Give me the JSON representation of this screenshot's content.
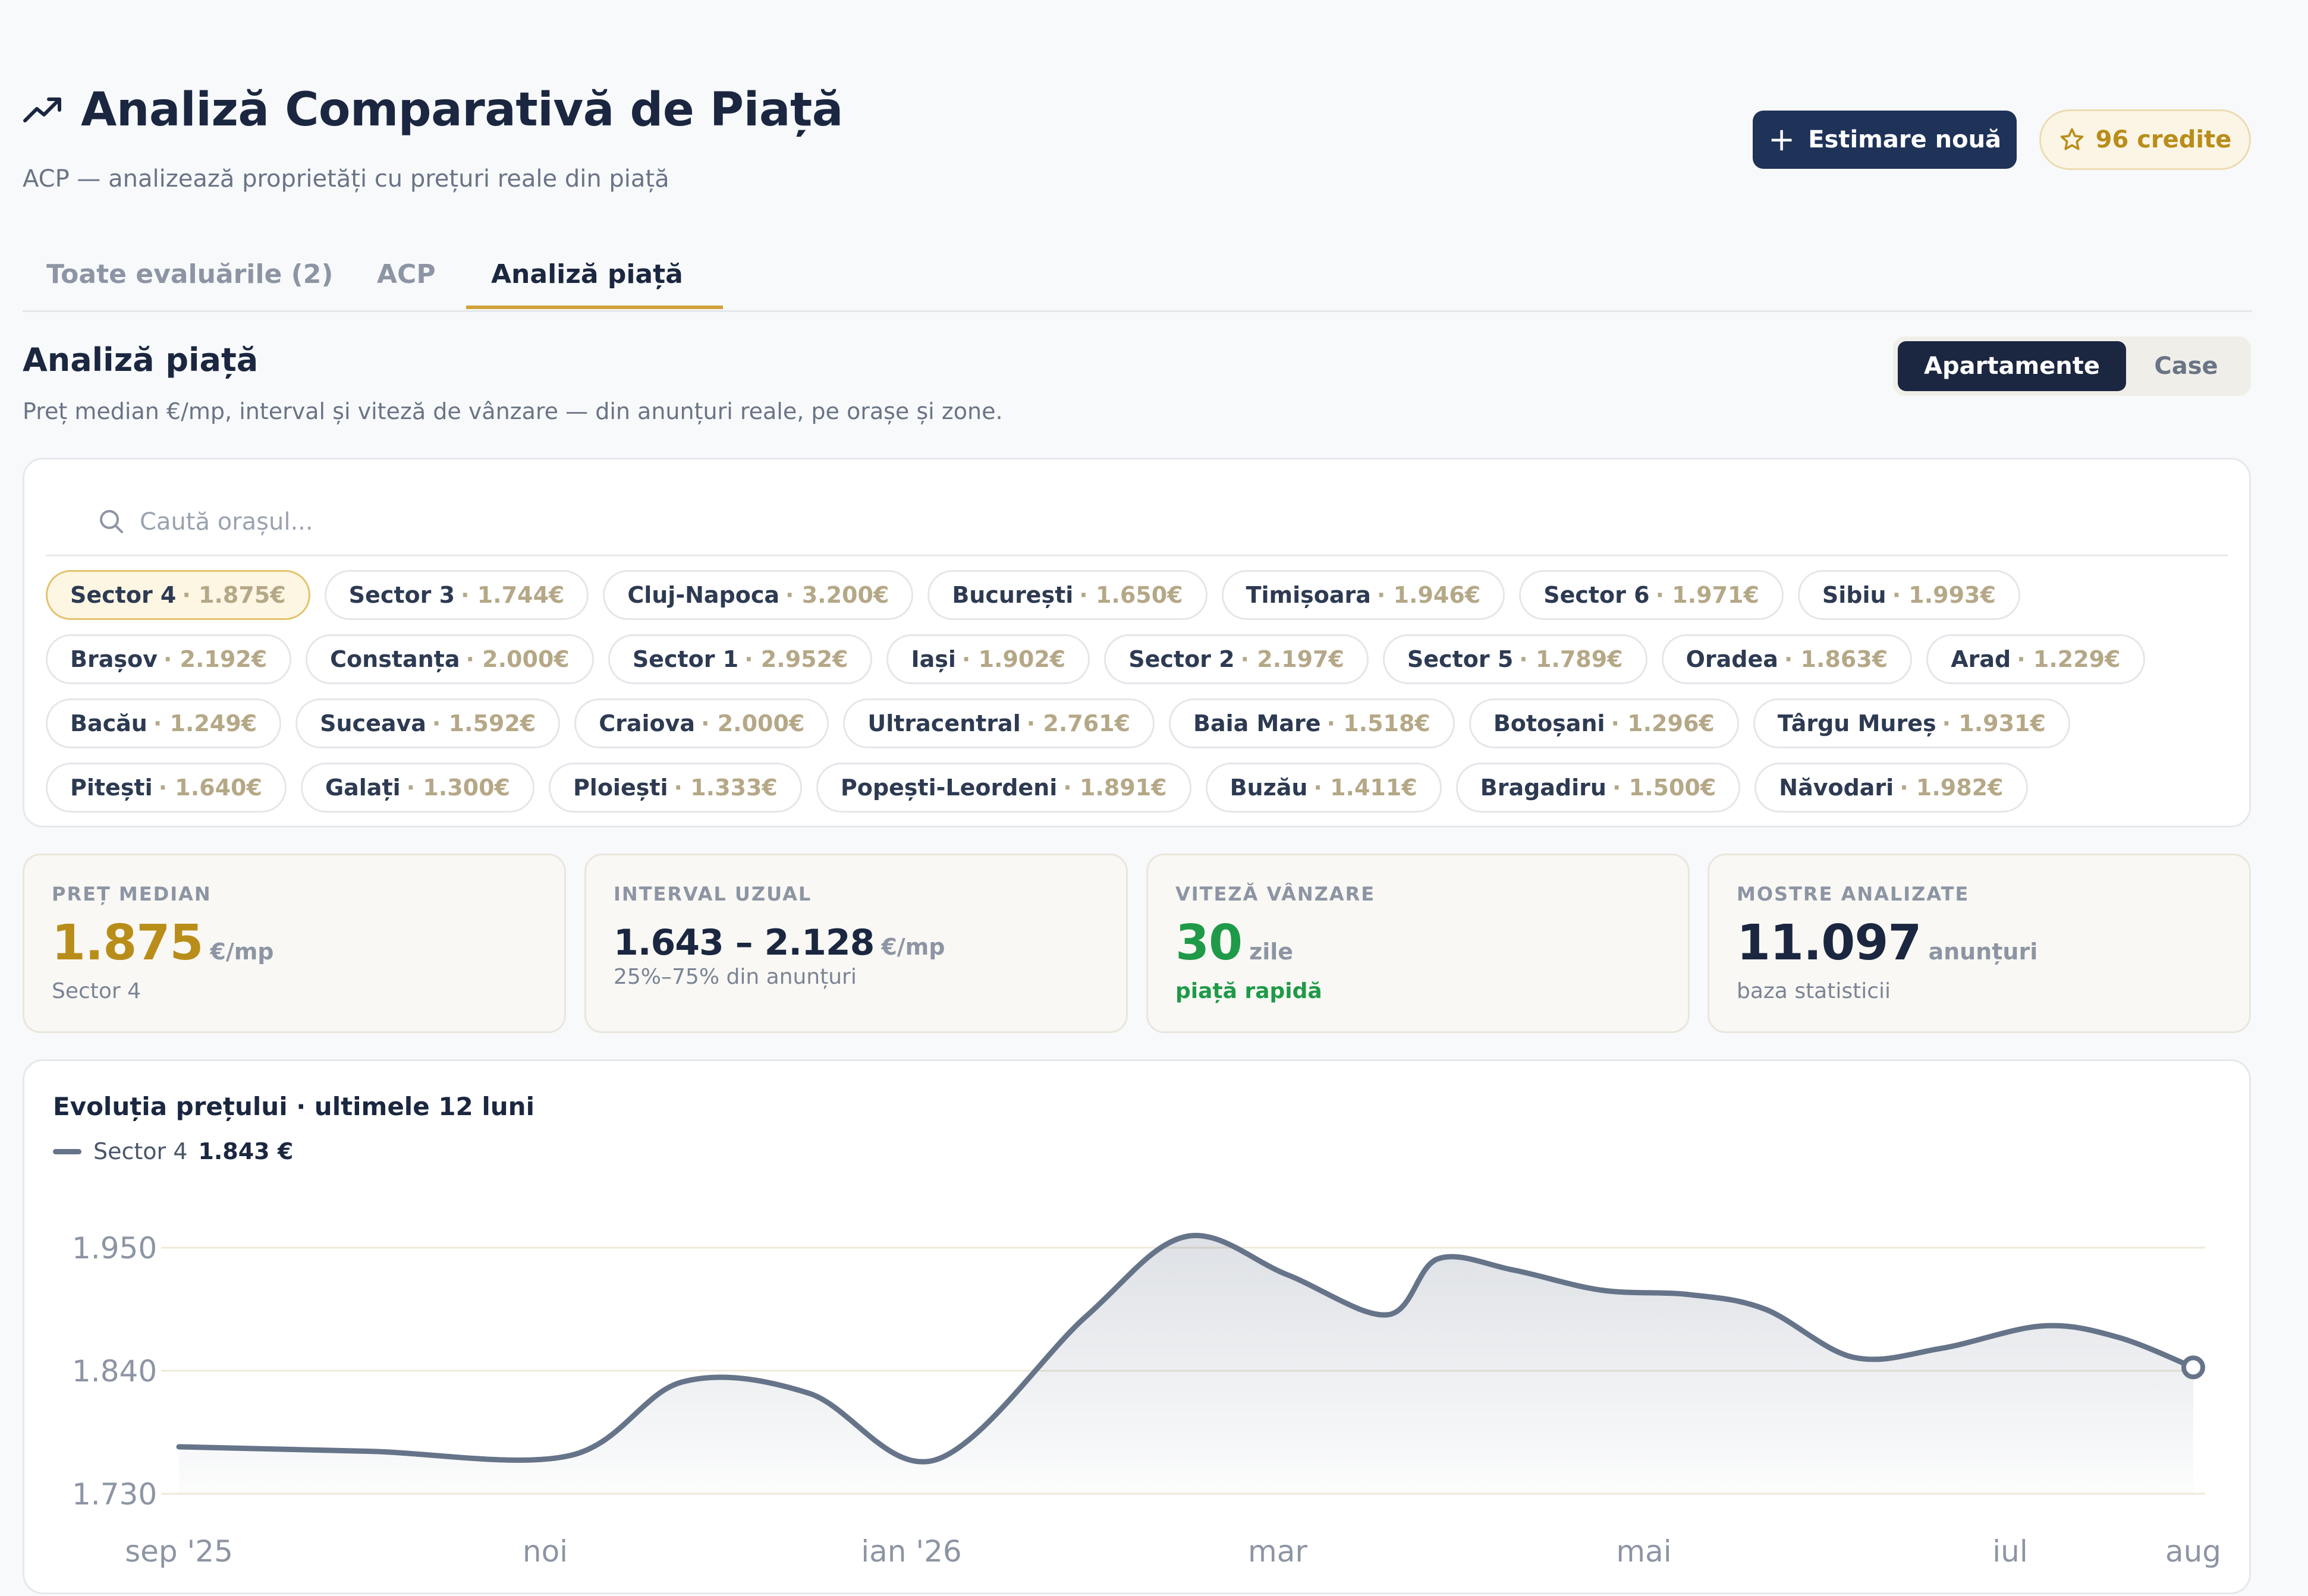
{
  "header": {
    "title": "Analiză Comparativă de Piață",
    "subtitle": "ACP — analizează proprietăți cu prețuri reale din piață",
    "title_icon": "trending-up-icon",
    "new_estimate_label": "Estimare nouă",
    "credits_label": "96 credite",
    "credits_icon": "star-icon"
  },
  "tabs": [
    {
      "label": "Toate evaluările (2)",
      "active": false
    },
    {
      "label": "ACP",
      "active": false
    },
    {
      "label": "Analiză piață",
      "active": true
    }
  ],
  "section": {
    "title": "Analiză piață",
    "description": "Preț median €/mp, interval și viteză de vânzare — din anunțuri reale, pe orașe și zone.",
    "toggle": {
      "apartments": "Apartamente",
      "houses": "Case",
      "selected": "Apartamente"
    }
  },
  "search": {
    "placeholder": "Caută orașul...",
    "value": ""
  },
  "cities": [
    [
      {
        "name": "Sector 4",
        "price": "1.875€",
        "selected": true
      },
      {
        "name": "Sector 3",
        "price": "1.744€"
      },
      {
        "name": "Cluj-Napoca",
        "price": "3.200€"
      },
      {
        "name": "București",
        "price": "1.650€"
      },
      {
        "name": "Timișoara",
        "price": "1.946€"
      },
      {
        "name": "Sector 6",
        "price": "1.971€"
      },
      {
        "name": "Sibiu",
        "price": "1.993€"
      }
    ],
    [
      {
        "name": "Brașov",
        "price": "2.192€"
      },
      {
        "name": "Constanța",
        "price": "2.000€"
      },
      {
        "name": "Sector 1",
        "price": "2.952€"
      },
      {
        "name": "Iași",
        "price": "1.902€"
      },
      {
        "name": "Sector 2",
        "price": "2.197€"
      },
      {
        "name": "Sector 5",
        "price": "1.789€"
      },
      {
        "name": "Oradea",
        "price": "1.863€"
      },
      {
        "name": "Arad",
        "price": "1.229€"
      }
    ],
    [
      {
        "name": "Bacău",
        "price": "1.249€"
      },
      {
        "name": "Suceava",
        "price": "1.592€"
      },
      {
        "name": "Craiova",
        "price": "2.000€"
      },
      {
        "name": "Ultracentral",
        "price": "2.761€"
      },
      {
        "name": "Baia Mare",
        "price": "1.518€"
      },
      {
        "name": "Botoșani",
        "price": "1.296€"
      },
      {
        "name": "Târgu Mureș",
        "price": "1.931€"
      }
    ],
    [
      {
        "name": "Pitești",
        "price": "1.640€"
      },
      {
        "name": "Galați",
        "price": "1.300€"
      },
      {
        "name": "Ploiești",
        "price": "1.333€"
      },
      {
        "name": "Popești-Leordeni",
        "price": "1.891€"
      },
      {
        "name": "Buzău",
        "price": "1.411€"
      },
      {
        "name": "Bragadiru",
        "price": "1.500€"
      },
      {
        "name": "Năvodari",
        "price": "1.982€"
      }
    ]
  ],
  "stats": {
    "median": {
      "label": "PREȚ MEDIAN",
      "value": "1.875",
      "unit": "€/mp",
      "sub": "Sector 4",
      "color": "#b98d1a"
    },
    "interval": {
      "label": "INTERVAL UZUAL",
      "value": "1.643 – 2.128",
      "unit": "€/mp",
      "sub": "25%–75% din anunțuri",
      "color": "#1b2740"
    },
    "speed": {
      "label": "VITEZĂ VÂNZARE",
      "value": "30",
      "unit": "zile",
      "sub": "piață rapidă",
      "color": "#1f9a48"
    },
    "samples": {
      "label": "MOSTRE ANALIZATE",
      "value": "11.097",
      "unit": "anunțuri",
      "sub": "baza statisticii",
      "color": "#1b2740"
    }
  },
  "chart_data": {
    "type": "line",
    "title": "Evoluția prețului · ultimele 12 luni",
    "legend": "top-left",
    "series": [
      {
        "name": "Sector 4",
        "last_value_label": "1.843 €",
        "color": "#667489",
        "values": [
          1772,
          1768,
          1764,
          1830,
          1820,
          1760,
          1888,
          1960,
          1926,
          1890,
          1940,
          1930,
          1912,
          1908,
          1895,
          1852,
          1860,
          1880,
          1870,
          1843
        ]
      }
    ],
    "x_positions": [
      0,
      1.5,
      3.1,
      4.0,
      5.0,
      6.0,
      7.2,
      8.0,
      8.8,
      9.6,
      10.0,
      10.6,
      11.3,
      12.0,
      12.6,
      13.3,
      14.0,
      14.8,
      15.4,
      16.0
    ],
    "x_tick_labels": [
      {
        "label": "sep '25",
        "pos": 0
      },
      {
        "label": "noi",
        "pos": 3
      },
      {
        "label": "ian '26",
        "pos": 6
      },
      {
        "label": "mar",
        "pos": 9
      },
      {
        "label": "mai",
        "pos": 12
      },
      {
        "label": "iul",
        "pos": 15
      },
      {
        "label": "aug",
        "pos": 16.5
      }
    ],
    "x_range": [
      0,
      16.5
    ],
    "y_ticks": [
      {
        "value": 1730,
        "label": "1.730"
      },
      {
        "value": 1840,
        "label": "1.840"
      },
      {
        "value": 1950,
        "label": "1.950"
      }
    ],
    "ylim": [
      1730,
      1950
    ],
    "grid": true
  }
}
